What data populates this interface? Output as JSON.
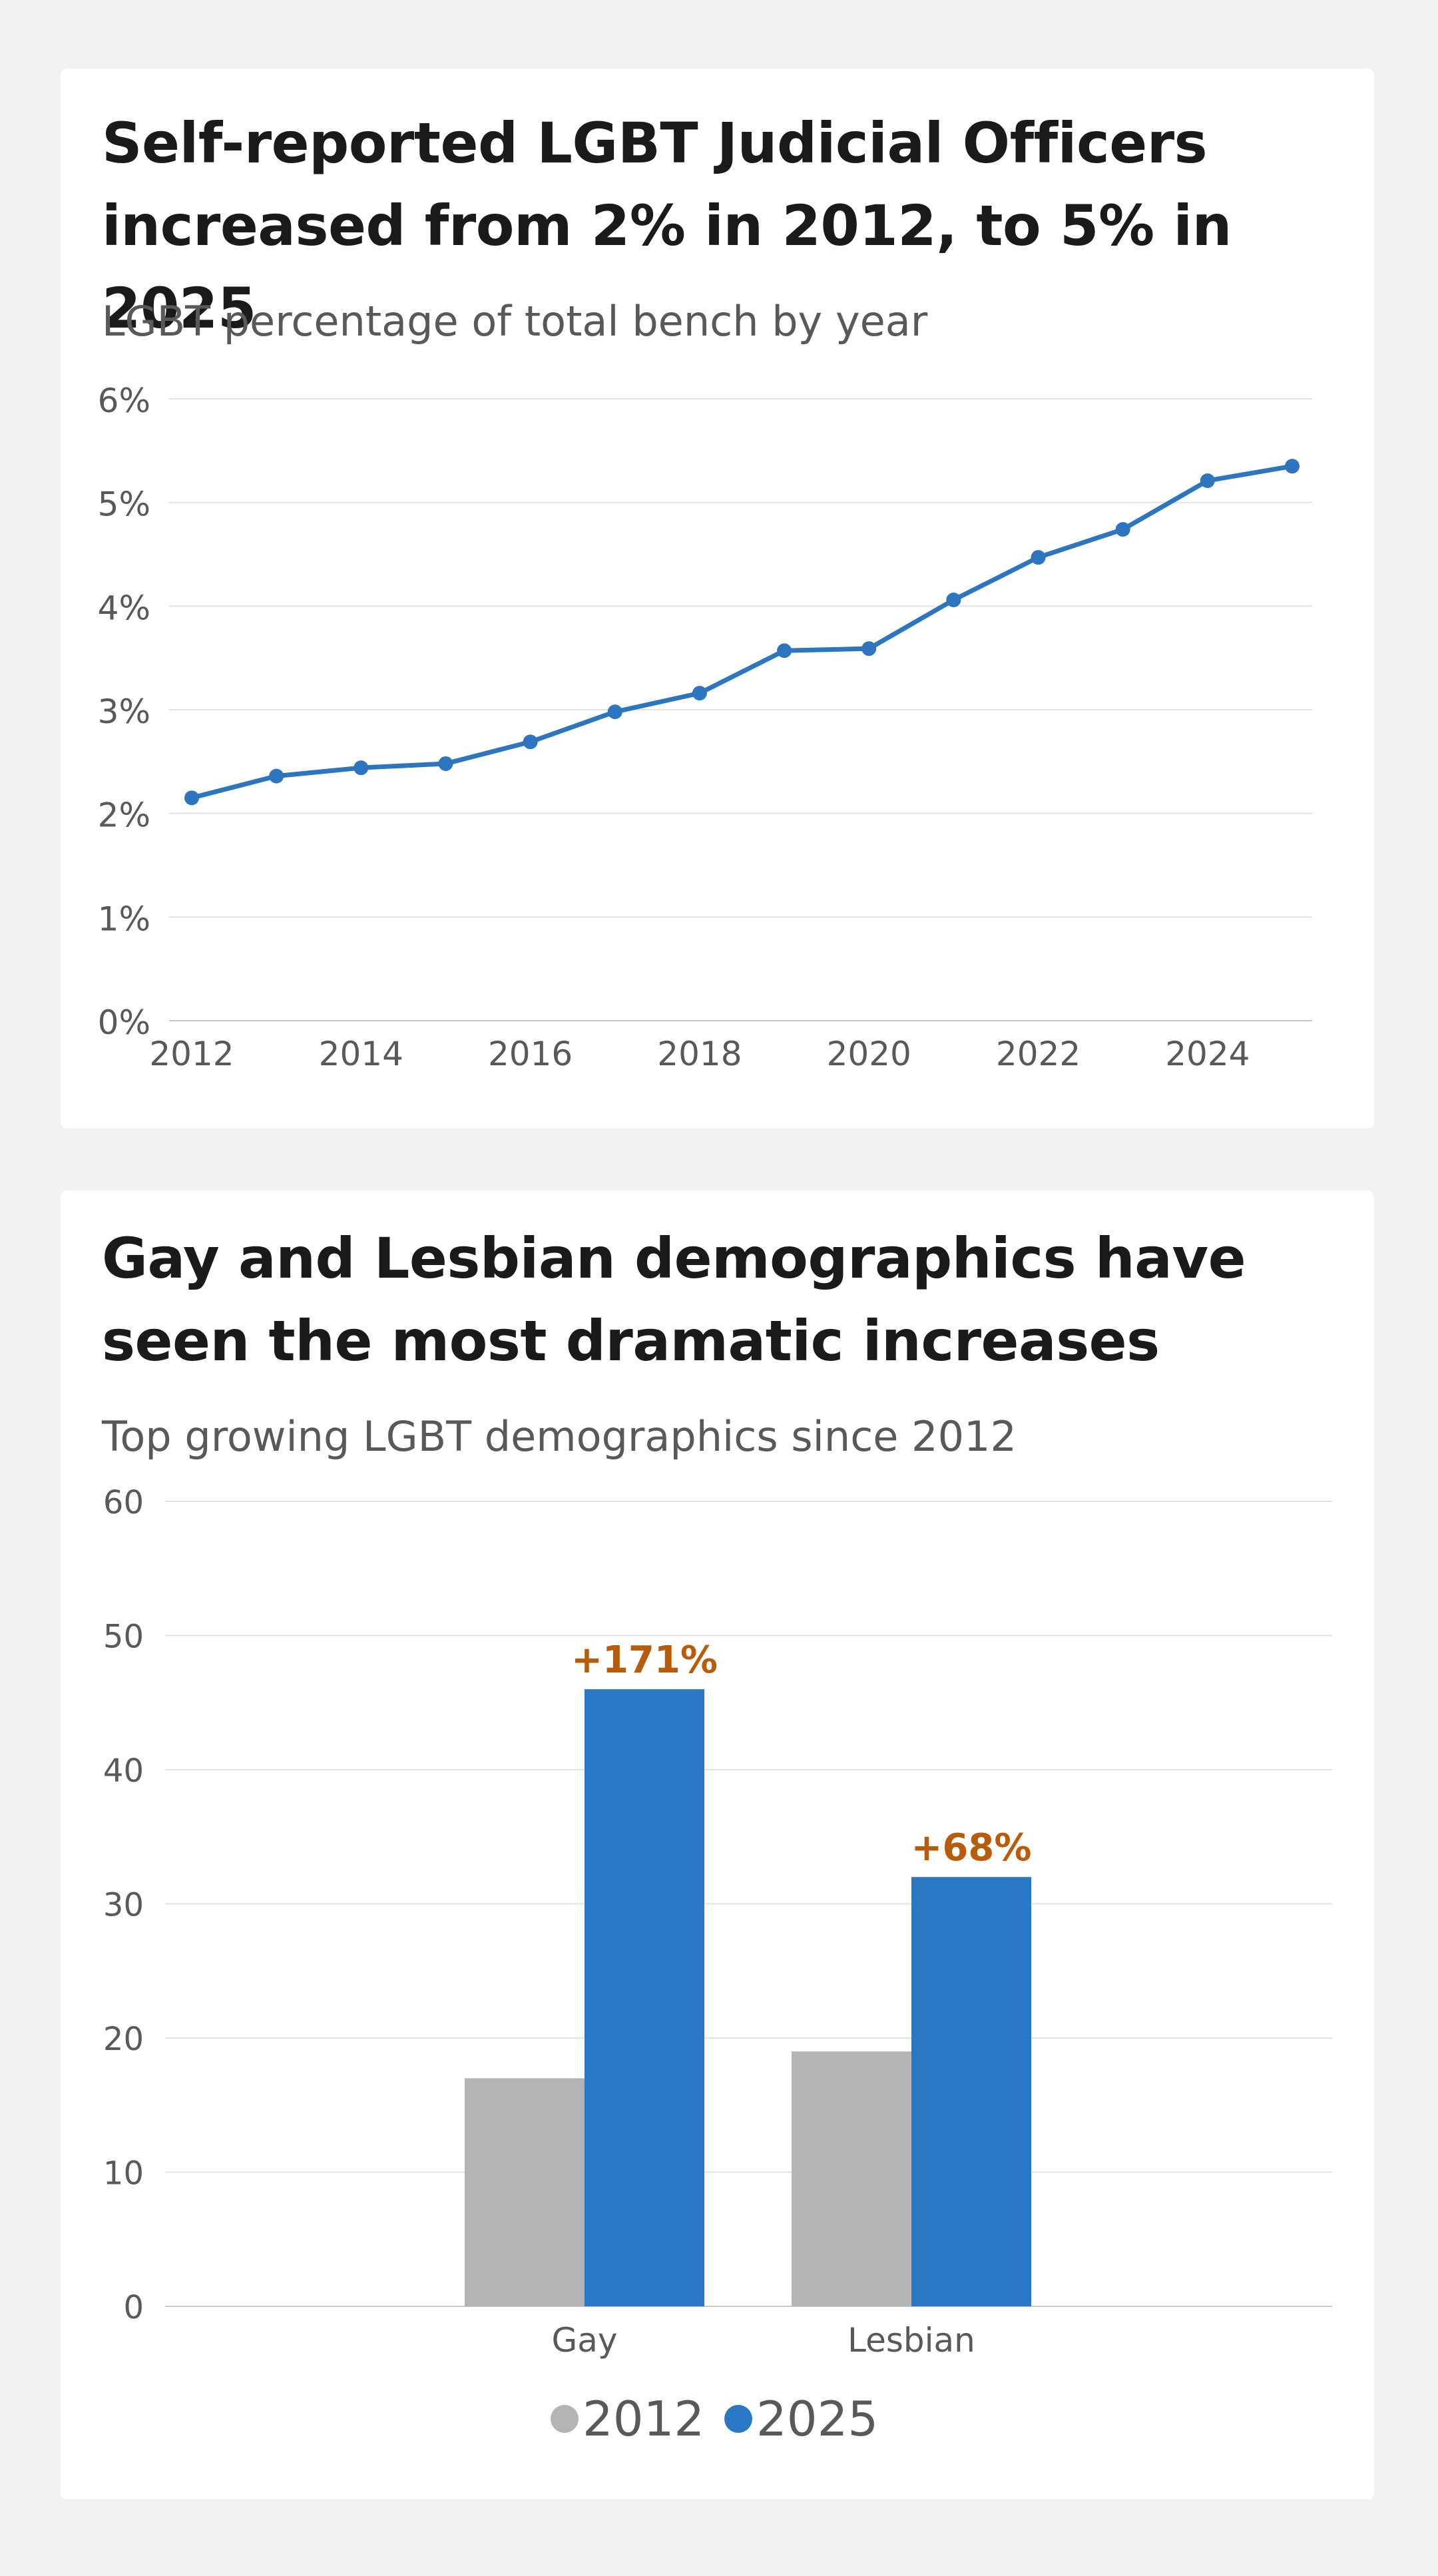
{
  "chart_data": [
    {
      "type": "line",
      "title": "Self-reported LGBT Judicial Officers increased from 2% in 2012, to 5% in 2025",
      "subtitle": "LGBT percentage of total bench by year",
      "xlabel": "",
      "ylabel": "",
      "ylim": [
        0,
        6
      ],
      "xlim": [
        2012,
        2025
      ],
      "y_ticks": [
        0,
        1,
        2,
        3,
        4,
        5,
        6
      ],
      "y_tick_labels": [
        "0%",
        "1%",
        "2%",
        "3%",
        "4%",
        "5%",
        "6%"
      ],
      "x_ticks": [
        2012,
        2014,
        2016,
        2018,
        2020,
        2022,
        2024
      ],
      "x_tick_labels": [
        "2012",
        "2014",
        "2016",
        "2018",
        "2020",
        "2022",
        "2024"
      ],
      "grid": true,
      "series": [
        {
          "name": "LGBT percentage",
          "color": "#2e75c0",
          "x": [
            2012,
            2013,
            2014,
            2015,
            2016,
            2017,
            2018,
            2019,
            2020,
            2021,
            2022,
            2023,
            2024,
            2025
          ],
          "values": [
            2.15,
            2.36,
            2.44,
            2.48,
            2.69,
            2.98,
            3.16,
            3.57,
            3.59,
            4.06,
            4.47,
            4.74,
            5.21,
            5.35
          ]
        }
      ]
    },
    {
      "type": "bar",
      "title": "Gay and Lesbian demographics have seen the most dramatic increases",
      "subtitle": "Top growing LGBT demographics since 2012",
      "xlabel": "",
      "ylabel": "",
      "ylim": [
        0,
        60
      ],
      "y_ticks": [
        0,
        10,
        20,
        30,
        40,
        50,
        60
      ],
      "y_tick_labels": [
        "0",
        "10",
        "20",
        "30",
        "40",
        "50",
        "60"
      ],
      "grid": true,
      "categories": [
        "Gay",
        "Lesbian"
      ],
      "series": [
        {
          "name": "2012",
          "color": "#b4b4b4",
          "values": [
            17,
            19
          ]
        },
        {
          "name": "2025",
          "color": "#2a78c4",
          "values": [
            46,
            32
          ]
        }
      ],
      "annotations": [
        "+171%",
        "+68%"
      ],
      "annotation_color": "#b85c0a",
      "legend_position": "bottom-center"
    }
  ]
}
